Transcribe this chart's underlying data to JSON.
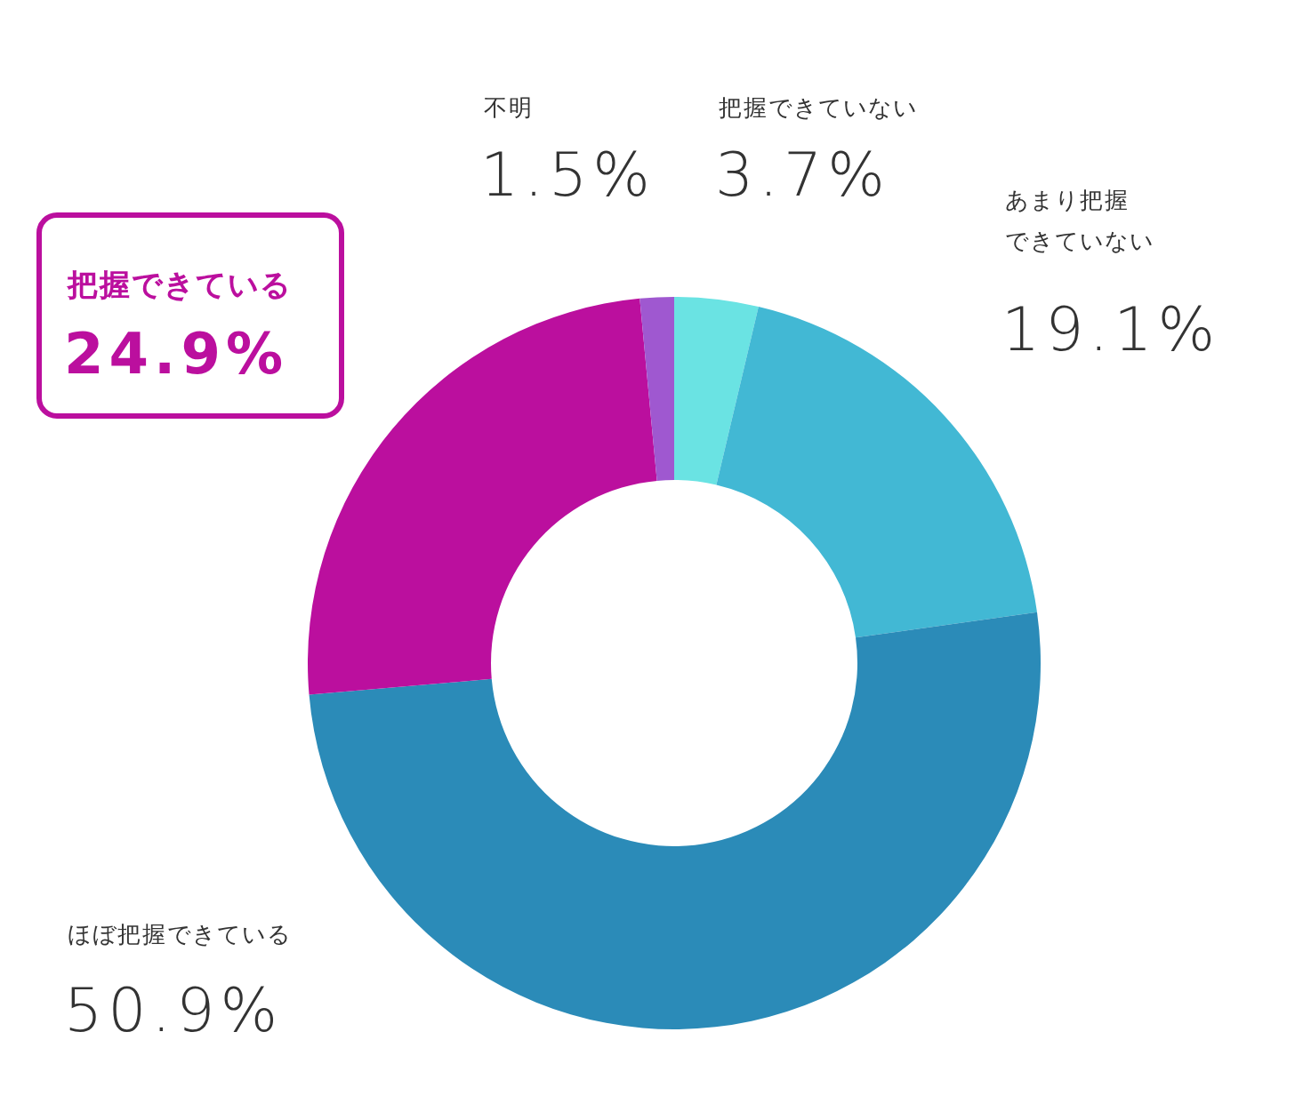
{
  "chart_data": {
    "type": "donut",
    "categories": [
      "把握できていない",
      "あまり把握できていない",
      "ほぼ把握できている",
      "把握できている",
      "不明"
    ],
    "values": [
      3.7,
      19.1,
      50.9,
      24.9,
      1.5
    ],
    "colors": [
      "#6ae3e3",
      "#42b8d4",
      "#2b8bb8",
      "#bb0f9e",
      "#9f58d0"
    ],
    "value_labels": [
      "3.7%",
      "19.1%",
      "50.9%",
      "24.9%",
      "1.5%"
    ]
  }
}
